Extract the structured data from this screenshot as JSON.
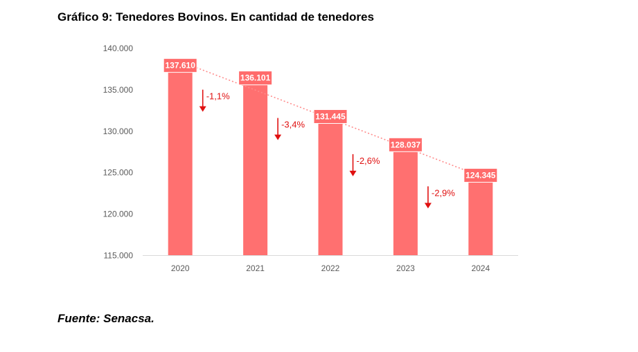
{
  "page": {
    "title": "Gráfico 9: Tenedores Bovinos. En cantidad de tenedores",
    "source": "Fuente: Senacsa."
  },
  "chart_data": {
    "type": "bar",
    "title": "Gráfico 9: Tenedores Bovinos. En cantidad de tenedores",
    "categories": [
      "2020",
      "2021",
      "2022",
      "2023",
      "2024"
    ],
    "values": [
      137610,
      136101,
      131445,
      128037,
      124345
    ],
    "data_labels": [
      "137.610",
      "136.101",
      "131.445",
      "128.037",
      "124.345"
    ],
    "changes": [
      "-1,1%",
      "-3,4%",
      "-2,6%",
      "-2,9%"
    ],
    "trendline": "linear, dotted",
    "ylim": [
      115000,
      140000
    ],
    "yticks": [
      115000,
      120000,
      125000,
      130000,
      135000,
      140000
    ],
    "ytick_labels": [
      "115.000",
      "120.000",
      "125.000",
      "130.000",
      "135.000",
      "140.000"
    ],
    "xlabel": "",
    "ylabel": "",
    "grid": false,
    "colors": {
      "bar": "#ff7070",
      "label_bg": "#ff6b6b",
      "trend": "#ff8a8a",
      "change": "#e01010",
      "axis": "#d9d9d9"
    }
  }
}
